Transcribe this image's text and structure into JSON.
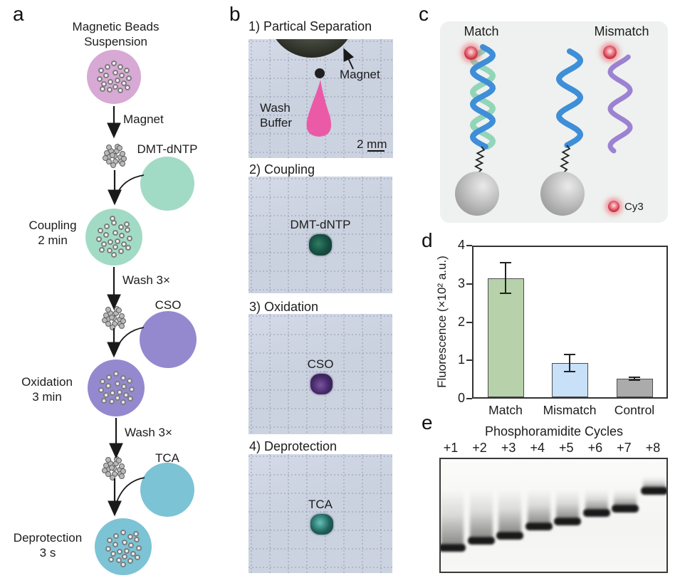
{
  "colors": {
    "suspension_pink": "#d7a9d4",
    "coupling_teal": "#a2dbc5",
    "oxidation_purple": "#9489cf",
    "deprotection_cyan": "#7cc3d5",
    "photo_background": "#ccd3e0",
    "wash_buffer_pink": "#ee4fa2",
    "strand_blue": "#3e8ed8",
    "strand_teal": "#92d5b9",
    "strand_purple": "#9c82d2",
    "cy3_red": "#c8303e",
    "bar_match_green": "#b7d1aa",
    "bar_mismatch_blue": "#c8e0f8",
    "bar_control_gray": "#ababab"
  },
  "panel_a": {
    "label": "a",
    "title_line1": "Magnetic Beads",
    "title_line2": "Suspension",
    "arrow1_label": "Magnet",
    "reagent1": "DMT-dNTP",
    "step1_line1": "Coupling",
    "step1_line2": "2 min",
    "wash1": "Wash 3×",
    "reagent2": "CSO",
    "step2_line1": "Oxidation",
    "step2_line2": "3 min",
    "wash2": "Wash 3×",
    "reagent3": "TCA",
    "step3_line1": "Deprotection",
    "step3_line2": "3 s"
  },
  "panel_b": {
    "label": "b",
    "sections": [
      {
        "title": "1) Partical Separation",
        "magnet_label": "Magnet",
        "wash_line1": "Wash",
        "wash_line2": "Buffer",
        "scale_label": "2 mm"
      },
      {
        "title": "2) Coupling",
        "droplet_label": "DMT-dNTP"
      },
      {
        "title": "3) Oxidation",
        "droplet_label": "CSO"
      },
      {
        "title": "4) Deprotection",
        "droplet_label": "TCA"
      }
    ]
  },
  "panel_c": {
    "label": "c",
    "match_label": "Match",
    "mismatch_label": "Mismatch",
    "legend_label": "Cy3"
  },
  "panel_d": {
    "label": "d"
  },
  "chart_data": {
    "type": "bar",
    "categories": [
      "Match",
      "Mismatch",
      "Control"
    ],
    "values": [
      3.15,
      0.93,
      0.52
    ],
    "errors": [
      0.4,
      0.23,
      0.03
    ],
    "title": "",
    "xlabel": "",
    "ylabel": "Fluorescence (×10² a.u.)",
    "ylim": [
      0,
      4
    ],
    "yticks": [
      0,
      1,
      2,
      3,
      4
    ],
    "bar_colors": [
      "#b7d1aa",
      "#c8e0f8",
      "#ababab"
    ],
    "grid": false,
    "legend": "none"
  },
  "panel_e": {
    "label": "e",
    "title": "Phosphoramidite Cycles",
    "lanes": [
      {
        "label": "+1",
        "band_y": 768
      },
      {
        "label": "+2",
        "band_y": 758
      },
      {
        "label": "+3",
        "band_y": 751
      },
      {
        "label": "+4",
        "band_y": 738
      },
      {
        "label": "+5",
        "band_y": 731
      },
      {
        "label": "+6",
        "band_y": 719
      },
      {
        "label": "+7",
        "band_y": 713
      },
      {
        "label": "+8",
        "band_y": 688
      }
    ]
  }
}
